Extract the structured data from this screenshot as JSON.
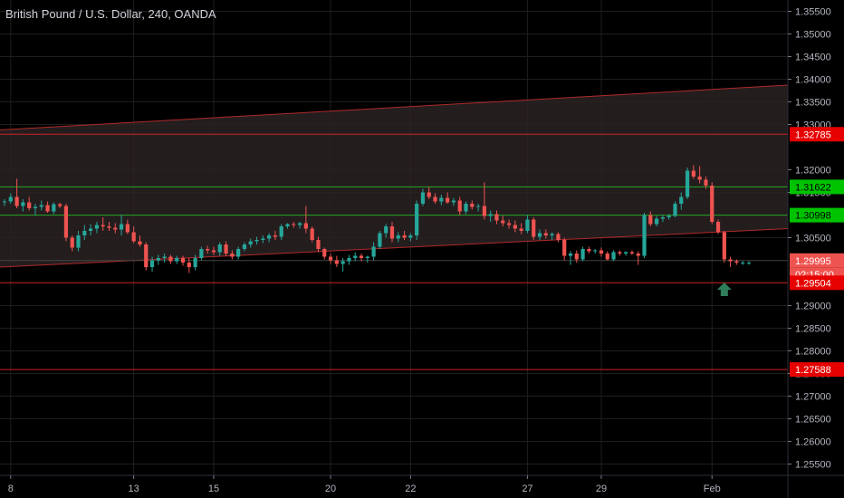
{
  "header": {
    "title": "British Pound / U.S. Dollar, 240, OANDA"
  },
  "colors": {
    "background": "#000000",
    "up_candle": "#26a69a",
    "down_candle": "#ef5350",
    "grid": "#1e1e1e",
    "channel_line": "#b02a2a",
    "channel_fill": "#2a2223",
    "support_red": "#cc2222",
    "support_green": "#22aa22",
    "arrow": "#2e7d5b"
  },
  "chart_data": {
    "type": "candlestick",
    "title": "British Pound / U.S. Dollar, 240, OANDA",
    "ylim": [
      1.2525,
      1.3575
    ],
    "y_ticks": [
      "1.35500",
      "1.35000",
      "1.34500",
      "1.34000",
      "1.33500",
      "1.33000",
      "1.32000",
      "1.31500",
      "1.30500",
      "1.29000",
      "1.28500",
      "1.28000",
      "1.27500",
      "1.27000",
      "1.26500",
      "1.26000",
      "1.25500"
    ],
    "x_ticks": [
      "8",
      "13",
      "15",
      "20",
      "22",
      "27",
      "29",
      "Feb"
    ],
    "x_tick_index": [
      1,
      21,
      34,
      53,
      66,
      85,
      97,
      115
    ],
    "candle_count": 122,
    "price_labels": [
      {
        "value": 1.32785,
        "text": "1.32785",
        "bg": "#e60000",
        "fg": "#ffffff"
      },
      {
        "value": 1.31622,
        "text": "1.31622",
        "bg": "#00c300",
        "fg": "#000000"
      },
      {
        "value": 1.30998,
        "text": "1.30998",
        "bg": "#00c300",
        "fg": "#000000"
      },
      {
        "value": 1.29995,
        "text": "1.29995",
        "bg": "#ef5350",
        "fg": "#ffffff"
      },
      {
        "value": 1.29504,
        "text": "1.29504",
        "bg": "#e60000",
        "fg": "#ffffff"
      },
      {
        "value": 1.27588,
        "text": "1.27588",
        "bg": "#e60000",
        "fg": "#ffffff"
      }
    ],
    "countdown": "02:15:00",
    "horizontal_lines": [
      {
        "value": 1.32785,
        "color": "#cc2222"
      },
      {
        "value": 1.31622,
        "color": "#22aa22"
      },
      {
        "value": 1.30998,
        "color": "#22aa22"
      },
      {
        "value": 1.29995,
        "color": "#444444"
      },
      {
        "value": 1.29504,
        "color": "#cc2222"
      },
      {
        "value": 1.27588,
        "color": "#cc2222"
      }
    ],
    "channel": {
      "upper": [
        [
          0,
          1.3288
        ],
        [
          121,
          1.3387
        ]
      ],
      "lower": [
        [
          0,
          1.2985
        ],
        [
          121,
          1.307
        ]
      ]
    },
    "arrow": {
      "direction": "up",
      "index": 117,
      "value": 1.2935
    },
    "candles": [
      [
        1.3128,
        1.3135,
        1.312,
        1.313
      ],
      [
        1.313,
        1.3148,
        1.3125,
        1.314
      ],
      [
        1.314,
        1.318,
        1.3115,
        1.312
      ],
      [
        1.312,
        1.3135,
        1.3108,
        1.3128
      ],
      [
        1.3128,
        1.314,
        1.311,
        1.3115
      ],
      [
        1.3115,
        1.3125,
        1.31,
        1.3118
      ],
      [
        1.3118,
        1.3132,
        1.311,
        1.3122
      ],
      [
        1.3122,
        1.313,
        1.3105,
        1.3108
      ],
      [
        1.3108,
        1.3128,
        1.3102,
        1.3124
      ],
      [
        1.3124,
        1.3127,
        1.3115,
        1.312
      ],
      [
        1.312,
        1.3125,
        1.3042,
        1.305
      ],
      [
        1.305,
        1.3055,
        1.302,
        1.3028
      ],
      [
        1.3028,
        1.3065,
        1.302,
        1.3055
      ],
      [
        1.3055,
        1.3078,
        1.3045,
        1.3065
      ],
      [
        1.3065,
        1.308,
        1.3055,
        1.307
      ],
      [
        1.307,
        1.3085,
        1.306,
        1.3078
      ],
      [
        1.3078,
        1.3095,
        1.3065,
        1.3075
      ],
      [
        1.3075,
        1.3085,
        1.3065,
        1.3072
      ],
      [
        1.3072,
        1.3082,
        1.306,
        1.3068
      ],
      [
        1.3068,
        1.31,
        1.3055,
        1.308
      ],
      [
        1.308,
        1.309,
        1.3058,
        1.3062
      ],
      [
        1.3062,
        1.3075,
        1.3038,
        1.3042
      ],
      [
        1.3042,
        1.3055,
        1.303,
        1.3035
      ],
      [
        1.3035,
        1.304,
        1.2978,
        1.2985
      ],
      [
        1.2985,
        1.3008,
        1.2975,
        1.3
      ],
      [
        1.3,
        1.3012,
        1.299,
        1.3005
      ],
      [
        1.3005,
        1.3015,
        1.2995,
        1.3008
      ],
      [
        1.3008,
        1.3012,
        1.2992,
        1.2998
      ],
      [
        1.2998,
        1.301,
        1.2992,
        1.3005
      ],
      [
        1.3005,
        1.301,
        1.2988,
        1.2995
      ],
      [
        1.2995,
        1.3005,
        1.2972,
        1.2985
      ],
      [
        1.2985,
        1.3012,
        1.2978,
        1.3005
      ],
      [
        1.3005,
        1.303,
        1.3,
        1.3025
      ],
      [
        1.3025,
        1.3032,
        1.3015,
        1.3022
      ],
      [
        1.3022,
        1.303,
        1.3012,
        1.3018
      ],
      [
        1.3018,
        1.304,
        1.301,
        1.3035
      ],
      [
        1.3035,
        1.3042,
        1.301,
        1.3015
      ],
      [
        1.3015,
        1.3022,
        1.3002,
        1.3008
      ],
      [
        1.3008,
        1.303,
        1.3002,
        1.3025
      ],
      [
        1.3025,
        1.304,
        1.302,
        1.3035
      ],
      [
        1.3035,
        1.3048,
        1.3028,
        1.3042
      ],
      [
        1.3042,
        1.3052,
        1.3035,
        1.3045
      ],
      [
        1.3045,
        1.3055,
        1.3038,
        1.3048
      ],
      [
        1.3048,
        1.306,
        1.304,
        1.3055
      ],
      [
        1.3055,
        1.3065,
        1.3045,
        1.3052
      ],
      [
        1.3052,
        1.308,
        1.3045,
        1.3075
      ],
      [
        1.3075,
        1.3082,
        1.307,
        1.308
      ],
      [
        1.308,
        1.3085,
        1.3072,
        1.3078
      ],
      [
        1.3078,
        1.3085,
        1.307,
        1.3082
      ],
      [
        1.3082,
        1.312,
        1.306,
        1.307
      ],
      [
        1.307,
        1.3075,
        1.304,
        1.3045
      ],
      [
        1.3045,
        1.3052,
        1.3018,
        1.3025
      ],
      [
        1.3025,
        1.3028,
        1.3002,
        1.3008
      ],
      [
        1.3008,
        1.3015,
        1.2992,
        1.3
      ],
      [
        1.3,
        1.301,
        1.2985,
        1.2992
      ],
      [
        1.2992,
        1.3005,
        1.2975,
        1.2998
      ],
      [
        1.2998,
        1.3012,
        1.299,
        1.3005
      ],
      [
        1.3005,
        1.3018,
        1.2998,
        1.301
      ],
      [
        1.301,
        1.3015,
        1.2998,
        1.3005
      ],
      [
        1.3005,
        1.301,
        1.2995,
        1.3008
      ],
      [
        1.3008,
        1.304,
        1.3,
        1.303
      ],
      [
        1.303,
        1.3065,
        1.3025,
        1.306
      ],
      [
        1.306,
        1.308,
        1.305,
        1.3075
      ],
      [
        1.3075,
        1.3085,
        1.304,
        1.3048
      ],
      [
        1.3048,
        1.3062,
        1.304,
        1.3055
      ],
      [
        1.3055,
        1.3065,
        1.3045,
        1.305
      ],
      [
        1.305,
        1.306,
        1.3042,
        1.3055
      ],
      [
        1.3055,
        1.3132,
        1.3045,
        1.3125
      ],
      [
        1.3125,
        1.3158,
        1.312,
        1.315
      ],
      [
        1.315,
        1.3162,
        1.3135,
        1.314
      ],
      [
        1.314,
        1.3148,
        1.3125,
        1.313
      ],
      [
        1.313,
        1.3145,
        1.3122,
        1.3138
      ],
      [
        1.3138,
        1.315,
        1.3125,
        1.3128
      ],
      [
        1.3128,
        1.3138,
        1.312,
        1.3132
      ],
      [
        1.3132,
        1.314,
        1.31,
        1.3108
      ],
      [
        1.3108,
        1.313,
        1.3102,
        1.3125
      ],
      [
        1.3125,
        1.3132,
        1.3112,
        1.3118
      ],
      [
        1.3118,
        1.3125,
        1.3108,
        1.312
      ],
      [
        1.312,
        1.3172,
        1.309,
        1.3098
      ],
      [
        1.3098,
        1.311,
        1.3085,
        1.3102
      ],
      [
        1.3102,
        1.311,
        1.308,
        1.3088
      ],
      [
        1.3088,
        1.3098,
        1.3075,
        1.3082
      ],
      [
        1.3082,
        1.309,
        1.307,
        1.3078
      ],
      [
        1.3078,
        1.3088,
        1.3062,
        1.307
      ],
      [
        1.307,
        1.3082,
        1.3058,
        1.3065
      ],
      [
        1.3065,
        1.31,
        1.306,
        1.309
      ],
      [
        1.309,
        1.3095,
        1.3045,
        1.3052
      ],
      [
        1.3052,
        1.3068,
        1.3045,
        1.306
      ],
      [
        1.306,
        1.3068,
        1.3048,
        1.3055
      ],
      [
        1.3055,
        1.3062,
        1.3045,
        1.3058
      ],
      [
        1.3058,
        1.3062,
        1.304,
        1.3045
      ],
      [
        1.3045,
        1.305,
        1.3,
        1.301
      ],
      [
        1.301,
        1.302,
        1.299,
        1.3015
      ],
      [
        1.3015,
        1.3022,
        1.2995,
        1.3002
      ],
      [
        1.3002,
        1.303,
        1.2998,
        1.3025
      ],
      [
        1.3025,
        1.303,
        1.3015,
        1.302
      ],
      [
        1.302,
        1.3025,
        1.3015,
        1.3022
      ],
      [
        1.3022,
        1.3028,
        1.3008,
        1.3015
      ],
      [
        1.3015,
        1.302,
        1.3,
        1.3002
      ],
      [
        1.3002,
        1.3022,
        1.2998,
        1.3018
      ],
      [
        1.3018,
        1.3022,
        1.301,
        1.3015
      ],
      [
        1.3015,
        1.302,
        1.301,
        1.3018
      ],
      [
        1.3018,
        1.3022,
        1.3012,
        1.3015
      ],
      [
        1.3015,
        1.302,
        1.299,
        1.301
      ],
      [
        1.301,
        1.3105,
        1.3005,
        1.31
      ],
      [
        1.31,
        1.3108,
        1.3075,
        1.308
      ],
      [
        1.308,
        1.3098,
        1.3075,
        1.3092
      ],
      [
        1.3092,
        1.31,
        1.3085,
        1.3095
      ],
      [
        1.3095,
        1.3102,
        1.309,
        1.3098
      ],
      [
        1.3098,
        1.313,
        1.3095,
        1.3125
      ],
      [
        1.3125,
        1.315,
        1.3112,
        1.314
      ],
      [
        1.314,
        1.3205,
        1.3135,
        1.3198
      ],
      [
        1.3198,
        1.321,
        1.318,
        1.3185
      ],
      [
        1.3185,
        1.3208,
        1.317,
        1.3178
      ],
      [
        1.3178,
        1.3185,
        1.3158,
        1.3165
      ],
      [
        1.3165,
        1.3172,
        1.308,
        1.3085
      ],
      [
        1.3085,
        1.309,
        1.3058,
        1.3062
      ],
      [
        1.3062,
        1.3065,
        1.2995,
        1.3002
      ],
      [
        1.3002,
        1.3008,
        1.2985,
        1.2998
      ],
      [
        1.2998,
        1.3002,
        1.299,
        1.2995
      ],
      [
        1.2995,
        1.2998,
        1.299,
        1.2995
      ],
      [
        1.2995,
        1.2998,
        1.299,
        1.2995
      ]
    ]
  }
}
